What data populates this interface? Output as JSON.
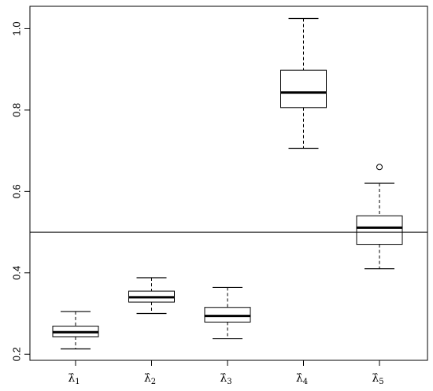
{
  "chart_data": {
    "type": "boxplot",
    "title": "",
    "xlabel": "",
    "ylabel": "",
    "ylim": [
      0.185,
      1.055
    ],
    "yticks": [
      0.2,
      0.4,
      0.6,
      0.8,
      1.0
    ],
    "ytick_labels": [
      "0.2",
      "0.4",
      "0.6",
      "0.8",
      "1.0"
    ],
    "reference_line": 0.5,
    "grid": false,
    "legend": "none",
    "categories": [
      {
        "symbol": "λ̂",
        "sub": "1"
      },
      {
        "symbol": "λ̂",
        "sub": "2"
      },
      {
        "symbol": "λ̂",
        "sub": "3"
      },
      {
        "symbol": "λ̂",
        "sub": "4"
      },
      {
        "symbol": "λ̂",
        "sub": "5"
      }
    ],
    "boxes": [
      {
        "whisker_low": 0.213,
        "q1": 0.243,
        "median": 0.254,
        "q3": 0.269,
        "whisker_high": 0.305,
        "outliers": []
      },
      {
        "whisker_low": 0.3,
        "q1": 0.328,
        "median": 0.34,
        "q3": 0.355,
        "whisker_high": 0.388,
        "outliers": []
      },
      {
        "whisker_low": 0.238,
        "q1": 0.279,
        "median": 0.294,
        "q3": 0.315,
        "whisker_high": 0.364,
        "outliers": []
      },
      {
        "whisker_low": 0.706,
        "q1": 0.806,
        "median": 0.843,
        "q3": 0.898,
        "whisker_high": 1.025,
        "outliers": []
      },
      {
        "whisker_low": 0.41,
        "q1": 0.47,
        "median": 0.511,
        "q3": 0.54,
        "whisker_high": 0.62,
        "outliers": [
          0.66
        ]
      }
    ]
  }
}
